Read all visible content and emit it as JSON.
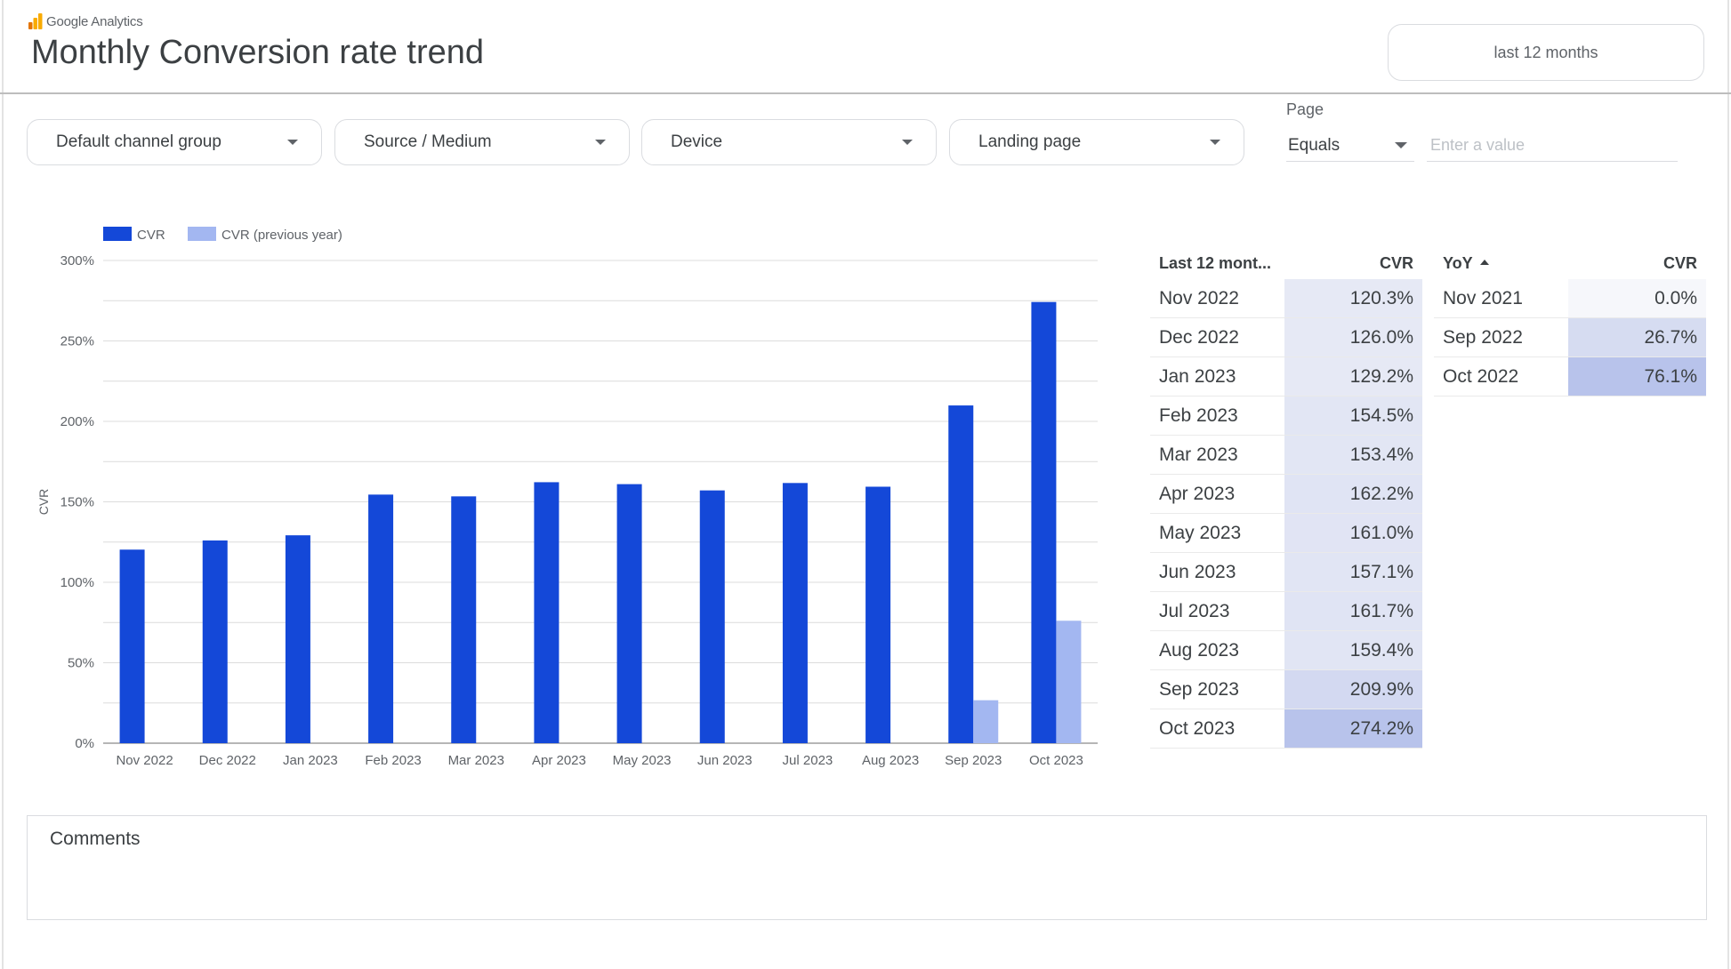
{
  "header": {
    "logo_text": "Google Analytics",
    "title": "Monthly Conversion rate trend",
    "date_range": "last 12 months"
  },
  "filters": [
    {
      "label": "Default channel group"
    },
    {
      "label": "Source / Medium"
    },
    {
      "label": "Device"
    },
    {
      "label": "Landing page"
    }
  ],
  "page_filter": {
    "label": "Page",
    "operator": "Equals",
    "placeholder": "Enter a value"
  },
  "colors": {
    "cvr": "#1448d8",
    "cvr_prev": "#a3b7f1",
    "cell_base": "#e6e9f5",
    "cell_max": "#b8c3eb"
  },
  "chart_data": {
    "type": "bar",
    "categories": [
      "Nov 2022",
      "Dec 2022",
      "Jan 2023",
      "Feb 2023",
      "Mar 2023",
      "Apr 2023",
      "May 2023",
      "Jun 2023",
      "Jul 2023",
      "Aug 2023",
      "Sep 2023",
      "Oct 2023"
    ],
    "series": [
      {
        "name": "CVR",
        "values": [
          120.3,
          126.0,
          129.2,
          154.5,
          153.4,
          162.2,
          161.0,
          157.1,
          161.7,
          159.4,
          209.9,
          274.2
        ]
      },
      {
        "name": "CVR (previous year)",
        "values": [
          null,
          null,
          null,
          null,
          null,
          null,
          null,
          null,
          null,
          null,
          26.7,
          76.1
        ]
      }
    ],
    "ylabel": "CVR",
    "ylim": [
      0,
      300
    ],
    "yticks": [
      "0%",
      "50%",
      "100%",
      "150%",
      "200%",
      "250%",
      "300%"
    ],
    "legend": "top-left",
    "grid": true
  },
  "table_last12": {
    "headers": [
      "Last 12 mont...",
      "CVR"
    ],
    "rows": [
      {
        "month": "Nov 2022",
        "cvr": "120.3%",
        "value": 120.3
      },
      {
        "month": "Dec 2022",
        "cvr": "126.0%",
        "value": 126.0
      },
      {
        "month": "Jan 2023",
        "cvr": "129.2%",
        "value": 129.2
      },
      {
        "month": "Feb 2023",
        "cvr": "154.5%",
        "value": 154.5
      },
      {
        "month": "Mar 2023",
        "cvr": "153.4%",
        "value": 153.4
      },
      {
        "month": "Apr 2023",
        "cvr": "162.2%",
        "value": 162.2
      },
      {
        "month": "May 2023",
        "cvr": "161.0%",
        "value": 161.0
      },
      {
        "month": "Jun 2023",
        "cvr": "157.1%",
        "value": 157.1
      },
      {
        "month": "Jul 2023",
        "cvr": "161.7%",
        "value": 161.7
      },
      {
        "month": "Aug 2023",
        "cvr": "159.4%",
        "value": 159.4
      },
      {
        "month": "Sep 2023",
        "cvr": "209.9%",
        "value": 209.9
      },
      {
        "month": "Oct 2023",
        "cvr": "274.2%",
        "value": 274.2
      }
    ]
  },
  "table_yoy": {
    "headers": [
      "YoY",
      "CVR"
    ],
    "rows": [
      {
        "month": "Nov 2021",
        "cvr": "0.0%",
        "value": 0.0
      },
      {
        "month": "Sep 2022",
        "cvr": "26.7%",
        "value": 26.7
      },
      {
        "month": "Oct 2022",
        "cvr": "76.1%",
        "value": 76.1
      }
    ]
  },
  "comments": {
    "label": "Comments"
  }
}
